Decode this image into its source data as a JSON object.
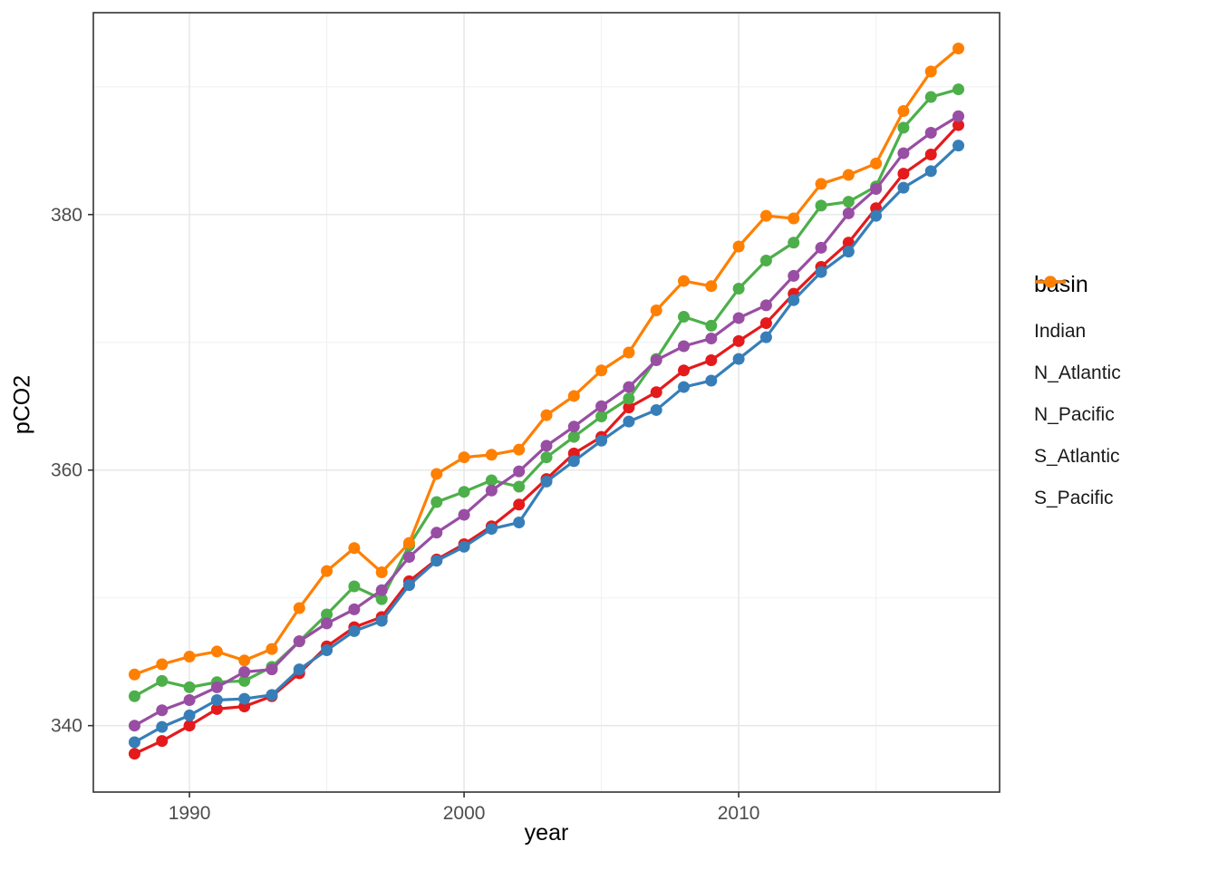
{
  "chart_data": {
    "type": "line",
    "title": "",
    "xlabel": "year",
    "ylabel": "pCO2",
    "legend_title": "basin",
    "legend_position": "right",
    "grid": true,
    "xlim": [
      1986.5,
      2019.5
    ],
    "ylim": [
      334.8,
      395.8
    ],
    "x_ticks": [
      1990,
      2000,
      2010
    ],
    "y_ticks": [
      340,
      360,
      380
    ],
    "x_minor_ticks": [
      1995,
      2005,
      2015
    ],
    "y_minor_ticks": [
      350,
      370,
      390
    ],
    "x": [
      1988,
      1989,
      1990,
      1991,
      1992,
      1993,
      1994,
      1995,
      1996,
      1997,
      1998,
      1999,
      2000,
      2001,
      2002,
      2003,
      2004,
      2005,
      2006,
      2007,
      2008,
      2009,
      2010,
      2011,
      2012,
      2013,
      2014,
      2015,
      2016,
      2017,
      2018
    ],
    "series": [
      {
        "name": "Indian",
        "color": "#E41A1C",
        "values": [
          337.8,
          338.8,
          340.0,
          341.3,
          341.5,
          342.3,
          344.1,
          346.2,
          347.7,
          348.5,
          351.3,
          353.0,
          354.2,
          355.6,
          357.3,
          359.3,
          361.3,
          362.6,
          364.9,
          366.1,
          367.8,
          368.6,
          370.1,
          371.5,
          373.8,
          375.9,
          377.8,
          380.5,
          383.2,
          384.7,
          387.0
        ]
      },
      {
        "name": "N_Atlantic",
        "color": "#377EB8",
        "values": [
          338.7,
          339.9,
          340.8,
          342.0,
          342.1,
          342.4,
          344.4,
          345.9,
          347.4,
          348.2,
          351.0,
          352.9,
          354.0,
          355.4,
          355.9,
          359.1,
          360.7,
          362.3,
          363.8,
          364.7,
          366.5,
          367.0,
          368.7,
          370.4,
          373.3,
          375.5,
          377.1,
          379.9,
          382.1,
          383.4,
          385.4
        ]
      },
      {
        "name": "N_Pacific",
        "color": "#4DAF4A",
        "values": [
          342.3,
          343.5,
          343.0,
          343.4,
          343.5,
          344.6,
          346.6,
          348.7,
          350.9,
          349.9,
          354.1,
          357.5,
          358.3,
          359.2,
          358.7,
          361.0,
          362.6,
          364.2,
          365.6,
          368.7,
          372.0,
          371.3,
          374.2,
          376.4,
          377.8,
          380.7,
          381.0,
          382.2,
          386.8,
          389.2,
          389.8
        ]
      },
      {
        "name": "S_Atlantic",
        "color": "#984EA3",
        "values": [
          340.0,
          341.2,
          342.0,
          343.0,
          344.2,
          344.4,
          346.6,
          348.0,
          349.1,
          350.6,
          353.2,
          355.1,
          356.5,
          358.4,
          359.9,
          361.9,
          363.4,
          365.0,
          366.5,
          368.6,
          369.7,
          370.3,
          371.9,
          372.9,
          375.2,
          377.4,
          380.1,
          382.0,
          384.8,
          386.4,
          387.7
        ]
      },
      {
        "name": "S_Pacific",
        "color": "#FF7F00",
        "values": [
          344.0,
          344.8,
          345.4,
          345.8,
          345.1,
          346.0,
          349.2,
          352.1,
          353.9,
          352.0,
          354.3,
          359.7,
          361.0,
          361.2,
          361.6,
          364.3,
          365.8,
          367.8,
          369.2,
          372.5,
          374.8,
          374.4,
          377.5,
          379.9,
          379.7,
          382.4,
          383.1,
          384.0,
          388.1,
          391.2,
          393.0
        ]
      }
    ],
    "style": {
      "panel_background": "#FFFFFF",
      "panel_border": "#333333",
      "grid_major": "#E8E8E8",
      "grid_minor": "#F2F2F2",
      "tick_label_color": "#4D4D4D",
      "tick_mark_color": "#333333",
      "point_radius": 6.5,
      "line_width": 3.2
    }
  }
}
